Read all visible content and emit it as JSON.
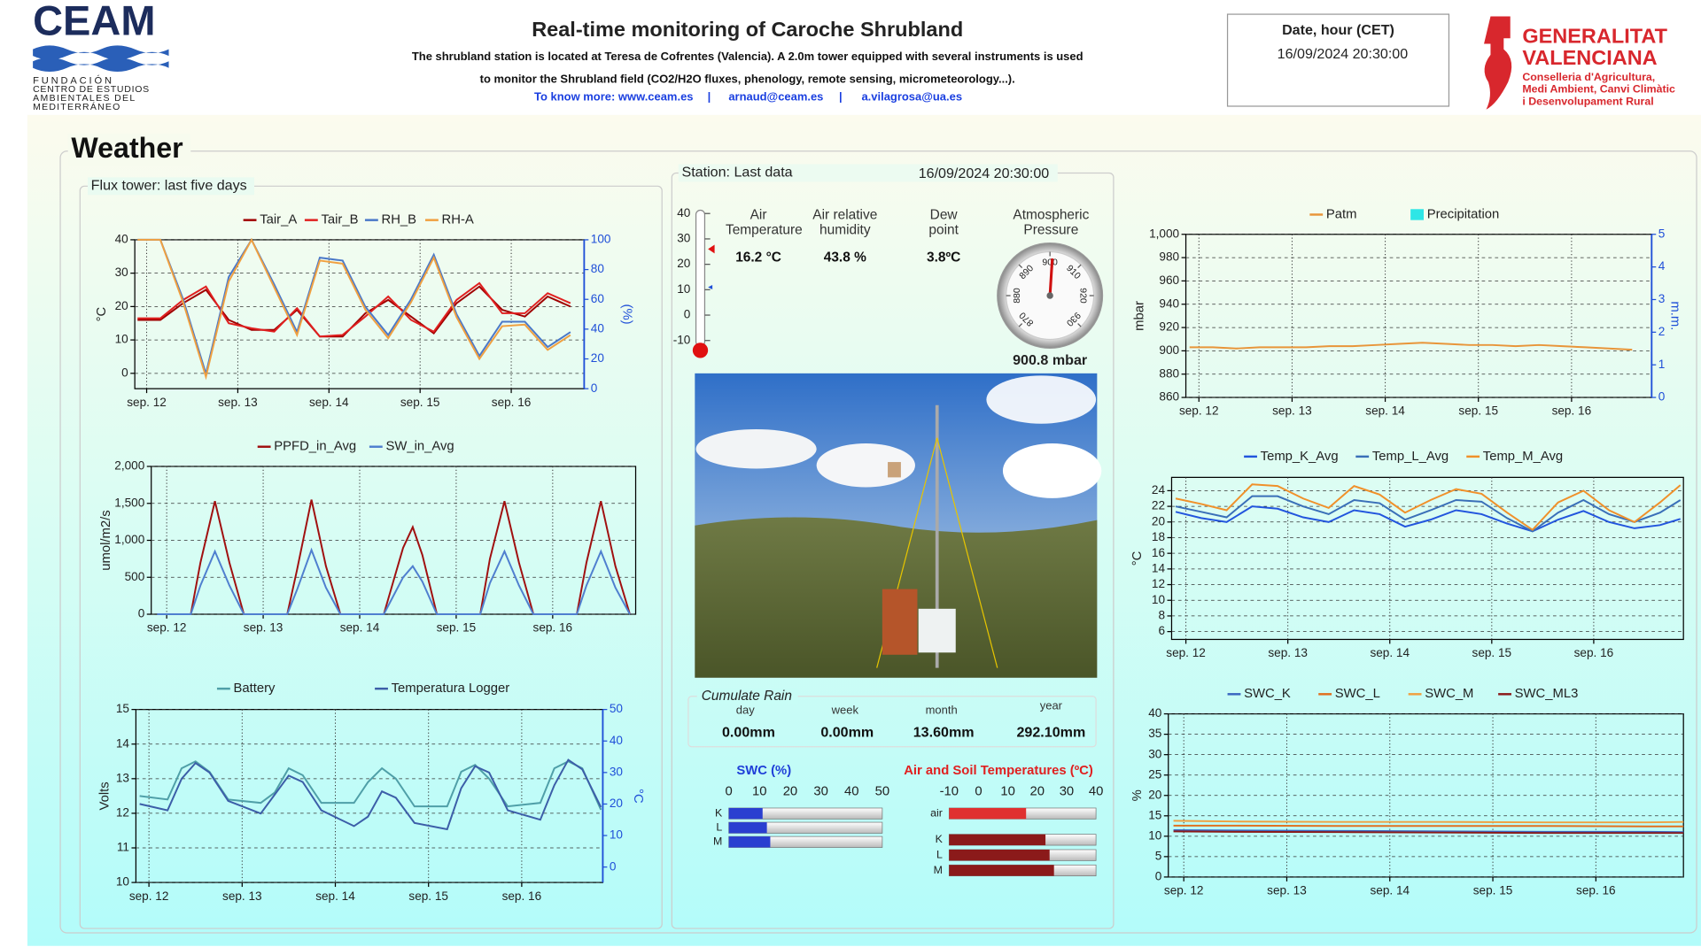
{
  "header": {
    "title": "Real-time monitoring of Caroche Shrubland",
    "description": [
      "The shrubland station is located at Teresa de Cofrentes (Valencia). A 2.0m tower equipped with several instruments is used",
      "to monitor the Shrubland field (CO2/H2O fluxes, phenology, remote sensing, micrometeorology...)."
    ],
    "links": [
      "To know more: www.ceam.es",
      "arnaud@ceam.es",
      "a.vilagrosa@ua.es"
    ],
    "separator": "|",
    "date_box": {
      "label": "Date, hour (CET)",
      "value": "16/09/2024 20:30:00"
    },
    "logo_left": {
      "name": "CEAM",
      "lines": [
        "FUNDACIÓN",
        "CENTRO DE ESTUDIOS",
        "AMBIENTALES DEL",
        "MEDITERRÁNEO"
      ]
    },
    "logo_right": {
      "name": [
        "GENERALITAT",
        "VALENCIANA"
      ],
      "lines": [
        "Conselleria d'Agricultura,",
        "Medi Ambient, Canvi Climàtic",
        "i Desenvolupament Rural"
      ]
    }
  },
  "weather": {
    "title": "Weather",
    "flux_title": "Flux tower: last five days"
  },
  "chart_data": [
    {
      "type": "line",
      "legend": "top",
      "grid": true,
      "ylabel": "°C",
      "y2label": "(%)",
      "xlim": [
        -0.13,
        4.8
      ],
      "xticks": [
        {
          "value": 0,
          "label": "sep. 12"
        },
        {
          "value": 1,
          "label": "sep. 13"
        },
        {
          "value": 2,
          "label": "sep. 14"
        },
        {
          "value": 3,
          "label": "sep. 15"
        },
        {
          "value": 4,
          "label": "sep. 16"
        }
      ],
      "ylim": [
        -4.6,
        40
      ],
      "yticks": [
        0,
        10,
        20,
        30,
        40
      ],
      "y2lim": [
        0,
        100
      ],
      "y2ticks": [
        0,
        20,
        40,
        60,
        80,
        100
      ],
      "x": [
        -0.1,
        0.15,
        0.4,
        0.65,
        0.9,
        1.15,
        1.4,
        1.65,
        1.9,
        2.15,
        2.4,
        2.65,
        2.9,
        3.15,
        3.4,
        3.65,
        3.9,
        4.15,
        4.4,
        4.65
      ],
      "series": [
        {
          "name": "Tair_A",
          "color": "#a00000",
          "values": [
            16,
            16,
            21,
            25,
            16,
            13,
            13,
            19,
            11,
            11,
            18,
            22,
            17,
            12,
            21,
            26,
            19,
            17,
            23,
            20
          ]
        },
        {
          "name": "Tair_B",
          "color": "#e02020",
          "values": [
            16.5,
            16.5,
            22,
            26,
            15,
            13.5,
            12.5,
            19.5,
            11,
            11.5,
            17,
            23,
            16,
            12.5,
            22,
            27,
            18,
            18,
            24,
            21
          ]
        },
        {
          "name": "RH_B",
          "color": "#4a78c8",
          "axis": "y2",
          "values": [
            100,
            100,
            60,
            10,
            75,
            100,
            70,
            38,
            88,
            86,
            55,
            36,
            60,
            90,
            50,
            22,
            45,
            45,
            28,
            38
          ]
        },
        {
          "name": "RH-A",
          "color": "#f0a040",
          "axis": "y2",
          "values": [
            100,
            100,
            58,
            8,
            72,
            100,
            68,
            36,
            86,
            84,
            53,
            34,
            58,
            88,
            48,
            20,
            42,
            43,
            26,
            36
          ]
        }
      ]
    },
    {
      "type": "line",
      "legend": "top",
      "grid": true,
      "ylabel": "umol/m2/s",
      "xlim": [
        -0.16,
        4.86
      ],
      "xticks": [
        {
          "value": 0,
          "label": "sep. 12"
        },
        {
          "value": 1,
          "label": "sep. 13"
        },
        {
          "value": 2,
          "label": "sep. 14"
        },
        {
          "value": 3,
          "label": "sep. 15"
        },
        {
          "value": 4,
          "label": "sep. 16"
        }
      ],
      "ylim": [
        0,
        2000
      ],
      "yticks": [
        0,
        500,
        {
          "value": 1000,
          "label": "1,000"
        },
        {
          "value": 1500,
          "label": "1,500"
        },
        {
          "value": 2000,
          "label": "2,000"
        }
      ],
      "x": [
        -0.1,
        0.25,
        0.35,
        0.5,
        0.65,
        0.8,
        1.25,
        1.35,
        1.5,
        1.65,
        1.8,
        2.25,
        2.35,
        2.45,
        2.55,
        2.65,
        2.8,
        3.25,
        3.35,
        3.5,
        3.65,
        3.8,
        4.25,
        4.35,
        4.5,
        4.65,
        4.8
      ],
      "series": [
        {
          "name": "PPFD_in_Avg",
          "color": "#a01010",
          "values": [
            0,
            0,
            700,
            1530,
            700,
            0,
            0,
            600,
            1550,
            650,
            0,
            0,
            450,
            900,
            1180,
            800,
            0,
            0,
            750,
            1530,
            700,
            0,
            0,
            700,
            1530,
            650,
            0
          ]
        },
        {
          "name": "SW_in_Avg",
          "color": "#4f7fcf",
          "values": [
            0,
            0,
            390,
            850,
            390,
            0,
            0,
            330,
            870,
            360,
            0,
            0,
            250,
            500,
            650,
            440,
            0,
            0,
            420,
            850,
            390,
            0,
            0,
            390,
            850,
            360,
            0
          ]
        }
      ]
    },
    {
      "type": "line",
      "legend": "top",
      "grid": true,
      "ylabel": "Volts",
      "y2label": "°C",
      "xlim": [
        -0.14,
        4.87
      ],
      "xticks": [
        {
          "value": 0,
          "label": "sep. 12"
        },
        {
          "value": 1,
          "label": "sep. 13"
        },
        {
          "value": 2,
          "label": "sep. 14"
        },
        {
          "value": 3,
          "label": "sep. 15"
        },
        {
          "value": 4,
          "label": "sep. 16"
        }
      ],
      "ylim": [
        10,
        15
      ],
      "yticks": [
        10,
        11,
        12,
        13,
        14,
        15
      ],
      "y2lim": [
        -4.9,
        50
      ],
      "y2ticks": [
        0,
        10,
        20,
        30,
        40,
        50
      ],
      "x": [
        -0.1,
        0.2,
        0.35,
        0.5,
        0.65,
        0.85,
        1.2,
        1.35,
        1.5,
        1.65,
        1.85,
        2.2,
        2.35,
        2.5,
        2.65,
        2.85,
        3.2,
        3.35,
        3.5,
        3.65,
        3.85,
        4.2,
        4.35,
        4.5,
        4.65,
        4.85
      ],
      "series": [
        {
          "name": "Battery",
          "color": "#4f9fa8",
          "values": [
            12.5,
            12.4,
            13.3,
            13.5,
            13.2,
            12.4,
            12.3,
            12.6,
            13.3,
            13.1,
            12.3,
            12.3,
            12.9,
            13.3,
            13.0,
            12.2,
            12.2,
            13.2,
            13.4,
            13.0,
            12.2,
            12.3,
            13.3,
            13.5,
            13.3,
            12.1
          ]
        },
        {
          "name": "Temperatura Logger",
          "color": "#3c5ea8",
          "axis": "y2",
          "values": [
            20,
            18,
            28,
            33,
            30,
            21,
            17,
            23,
            29,
            27,
            18,
            13,
            16,
            24,
            22,
            14,
            12,
            25,
            32,
            30,
            18,
            15,
            26,
            34,
            31,
            19
          ]
        }
      ]
    },
    {
      "type": "line",
      "legend": "top",
      "grid": true,
      "ylabel": "mbar",
      "y2label": "m.m.",
      "xlim": [
        -0.14,
        4.86
      ],
      "xticks": [
        {
          "value": 0,
          "label": "sep. 12"
        },
        {
          "value": 1,
          "label": "sep. 13"
        },
        {
          "value": 2,
          "label": "sep. 14"
        },
        {
          "value": 3,
          "label": "sep. 15"
        },
        {
          "value": 4,
          "label": "sep. 16"
        }
      ],
      "ylim": [
        860,
        1000
      ],
      "yticks": [
        860,
        880,
        900,
        920,
        940,
        960,
        980,
        {
          "value": 1000,
          "label": "1,000"
        }
      ],
      "y2lim": [
        0,
        5
      ],
      "y2ticks": [
        0,
        1,
        2,
        3,
        4,
        5
      ],
      "x": [
        -0.1,
        0.15,
        0.4,
        0.65,
        0.9,
        1.15,
        1.4,
        1.65,
        1.9,
        2.15,
        2.4,
        2.65,
        2.9,
        3.15,
        3.4,
        3.65,
        3.9,
        4.15,
        4.4,
        4.65
      ],
      "series": [
        {
          "name": "Patm",
          "color": "#e8953a",
          "values": [
            903,
            903,
            902,
            903,
            903,
            903,
            904,
            904,
            905,
            906,
            907,
            906,
            905,
            905,
            904,
            905,
            904,
            903,
            902,
            901
          ]
        },
        {
          "name": "Precipitation",
          "color": "#2ee6e6",
          "type": "bar",
          "axis": "y2",
          "values": [
            0,
            0,
            0,
            0,
            0,
            0,
            0,
            0,
            0,
            0,
            0,
            0,
            0,
            0,
            0,
            0,
            0,
            0,
            0,
            0
          ]
        }
      ]
    },
    {
      "type": "line",
      "legend": "top",
      "grid": true,
      "ylabel": "°C",
      "xlim": [
        -0.14,
        4.88
      ],
      "xticks": [
        {
          "value": 0,
          "label": "sep. 12"
        },
        {
          "value": 1,
          "label": "sep. 13"
        },
        {
          "value": 2,
          "label": "sep. 14"
        },
        {
          "value": 3,
          "label": "sep. 15"
        },
        {
          "value": 4,
          "label": "sep. 16"
        }
      ],
      "ylim": [
        5,
        25.7
      ],
      "yticks": [
        6,
        8,
        10,
        12,
        14,
        16,
        18,
        20,
        22,
        24
      ],
      "x": [
        -0.1,
        0.15,
        0.4,
        0.65,
        0.9,
        1.15,
        1.4,
        1.65,
        1.9,
        2.15,
        2.4,
        2.65,
        2.9,
        3.15,
        3.4,
        3.65,
        3.9,
        4.15,
        4.4,
        4.65,
        4.85
      ],
      "series": [
        {
          "name": "Temp_K_Avg",
          "color": "#2255dd",
          "values": [
            21.3,
            20.5,
            20,
            22,
            21.7,
            20.6,
            20,
            21.5,
            21,
            19.4,
            20.3,
            21.5,
            21,
            19.8,
            18.8,
            20.3,
            21.4,
            20,
            19.2,
            19.6,
            20.4
          ]
        },
        {
          "name": "Temp_L_Avg",
          "color": "#3a6fb8",
          "values": [
            22,
            21.3,
            20.6,
            23.3,
            23.3,
            22,
            21,
            22.8,
            22.4,
            20.3,
            21.5,
            22.8,
            22.6,
            20.5,
            18.8,
            21.2,
            22.8,
            21,
            20,
            21.2,
            22.8
          ]
        },
        {
          "name": "Temp_M_Avg",
          "color": "#f0902a",
          "values": [
            23,
            22.3,
            21.5,
            24.8,
            24.6,
            23,
            21.8,
            24.6,
            23.5,
            21.2,
            22.8,
            24.2,
            23.6,
            21.2,
            19,
            22.5,
            24,
            21.5,
            20,
            22.5,
            24.7
          ]
        }
      ]
    },
    {
      "type": "line",
      "legend": "top",
      "grid": true,
      "ylabel": "%",
      "xlim": [
        -0.15,
        4.85
      ],
      "xticks": [
        {
          "value": 0,
          "label": "sep. 12"
        },
        {
          "value": 1,
          "label": "sep. 13"
        },
        {
          "value": 2,
          "label": "sep. 14"
        },
        {
          "value": 3,
          "label": "sep. 15"
        },
        {
          "value": 4,
          "label": "sep. 16"
        }
      ],
      "ylim": [
        0,
        40
      ],
      "yticks": [
        0,
        5,
        10,
        15,
        20,
        25,
        30,
        35,
        40
      ],
      "x": [
        -0.1,
        0.5,
        1.5,
        2.5,
        3.5,
        4.5,
        4.85
      ],
      "series": [
        {
          "name": "SWC_K",
          "color": "#3a66c0",
          "values": [
            11.5,
            11.4,
            11.3,
            11.2,
            11.1,
            11.1,
            11.0
          ]
        },
        {
          "name": "SWC_L",
          "color": "#e07020",
          "values": [
            12.6,
            12.6,
            12.5,
            12.5,
            12.5,
            12.4,
            12.4
          ]
        },
        {
          "name": "SWC_M",
          "color": "#f0a040",
          "values": [
            13.8,
            13.6,
            13.5,
            13.5,
            13.4,
            13.4,
            13.5
          ]
        },
        {
          "name": "SWC_ML3",
          "color": "#8b1a1a",
          "values": [
            11.2,
            11.1,
            11.0,
            10.9,
            10.8,
            10.8,
            10.8
          ]
        }
      ]
    }
  ],
  "station": {
    "title": "Station: Last data",
    "timestamp": "16/09/2024 20:30:00",
    "thermometer": {
      "ylim": [
        -10,
        40
      ],
      "ticks": [
        40,
        30,
        20,
        10,
        0,
        -10
      ],
      "max": 26,
      "min": 11
    },
    "readings": {
      "labels": [
        "Air Temperature",
        "Air relative humidity",
        "Dew point"
      ],
      "values": [
        "16.2 °C",
        "43.8 %",
        "3.8ºC"
      ]
    },
    "gauge": {
      "label": "Atmospheric Pressure",
      "range": [
        870,
        930
      ],
      "ticks": [
        870,
        880,
        890,
        900,
        910,
        920,
        930
      ],
      "value": 900.8,
      "unit": "mbar"
    },
    "rain": {
      "title": "Cumulate Rain",
      "periods": [
        "day",
        "week",
        "month",
        "year"
      ],
      "values": [
        "0.00mm",
        "0.00mm",
        "13.60mm",
        "292.10mm"
      ]
    },
    "swc": {
      "title": "SWC (%)",
      "xlim": [
        0,
        50
      ],
      "ticks": [
        0,
        10,
        20,
        30,
        40,
        50
      ],
      "categories": [
        "K",
        "L",
        "M"
      ],
      "values": [
        11,
        12.4,
        13.5
      ],
      "color": "#2a3fd0"
    },
    "temps": {
      "title": "Air and Soil Temperatures (ºC)",
      "xlim": [
        -10,
        40
      ],
      "ticks": [
        -10,
        0,
        10,
        20,
        30,
        40
      ],
      "categories": [
        "air",
        "K",
        "L",
        "M"
      ],
      "values": [
        16.2,
        22.8,
        24.2,
        25.7
      ],
      "colors": [
        "#e03030",
        "#8b1a1a",
        "#8b1a1a",
        "#8b1a1a"
      ]
    }
  }
}
